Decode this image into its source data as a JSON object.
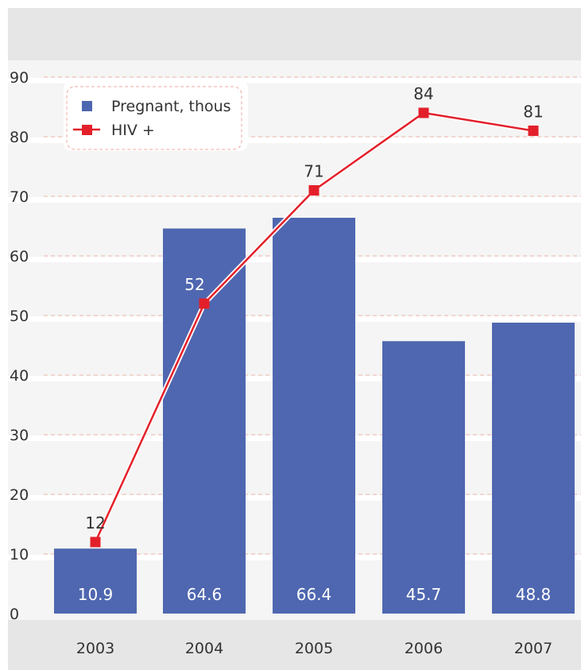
{
  "chart_data": {
    "type": "bar",
    "categories": [
      "2003",
      "2004",
      "2005",
      "2006",
      "2007"
    ],
    "ylim": [
      0,
      90
    ],
    "yticks": [
      0,
      10,
      20,
      30,
      40,
      50,
      60,
      70,
      80,
      90
    ],
    "grid": true,
    "legend_position": "top-left",
    "series": [
      {
        "name": "Pregnant, thous",
        "kind": "bar",
        "color": "#4f67b0",
        "values": [
          10.9,
          64.6,
          66.4,
          45.7,
          48.8
        ],
        "labels": [
          "10.9",
          "64.6",
          "66.4",
          "45.7",
          "48.8"
        ]
      },
      {
        "name": "HIV +",
        "kind": "line",
        "color": "#e3202a",
        "values": [
          12,
          52,
          71,
          84,
          81
        ],
        "labels": [
          "12",
          "52",
          "71",
          "84",
          "81"
        ]
      }
    ]
  }
}
